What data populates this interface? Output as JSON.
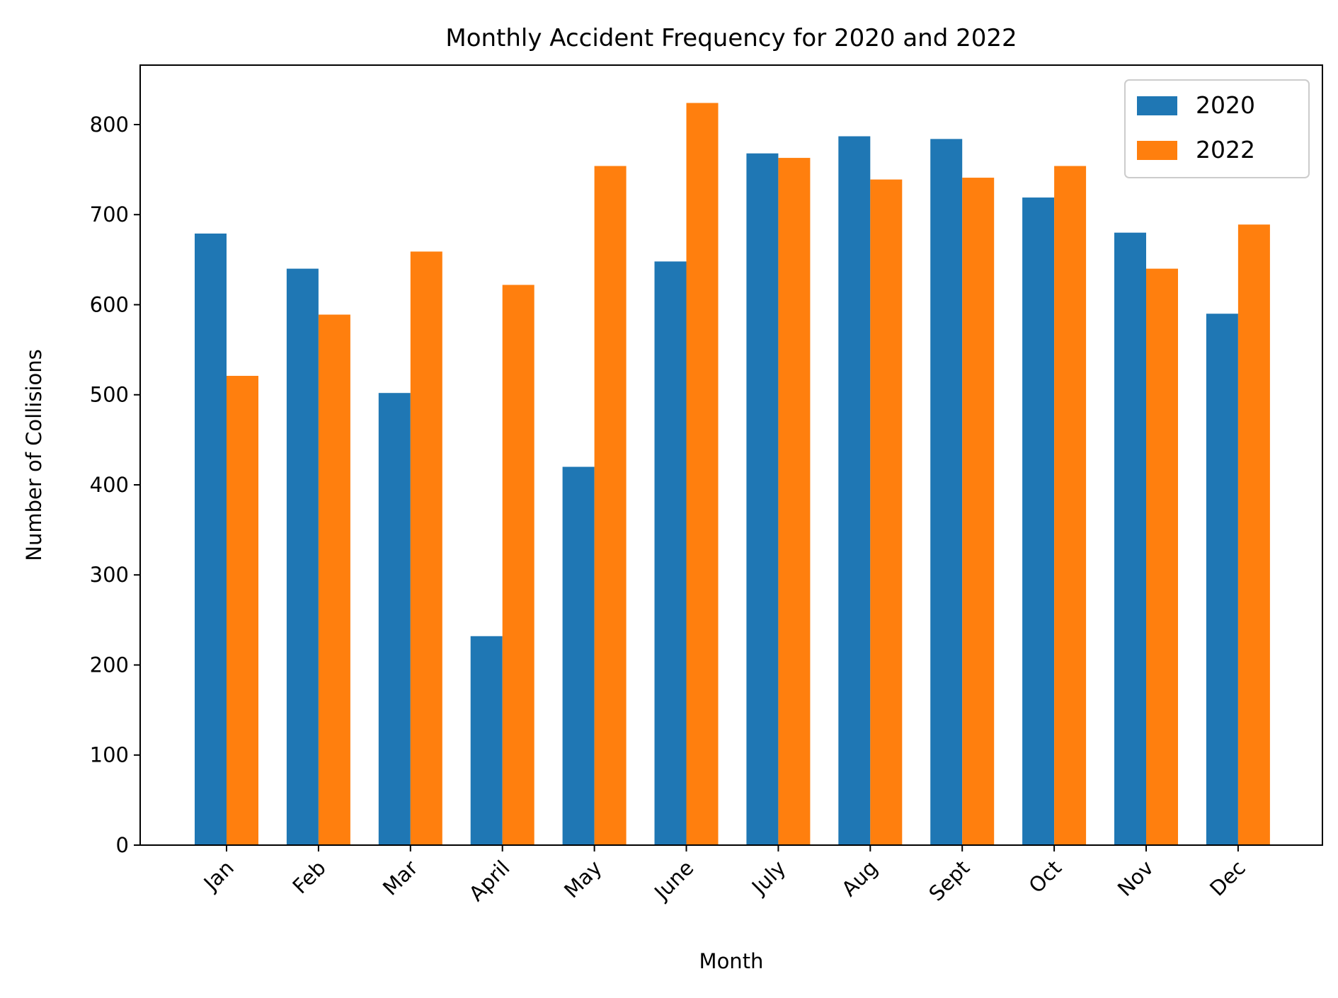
{
  "chart_data": {
    "type": "bar",
    "title": "Monthly Accident Frequency for 2020 and 2022",
    "xlabel": "Month",
    "ylabel": "Number of Collisions",
    "categories": [
      "Jan",
      "Feb",
      "Mar",
      "April",
      "May",
      "June",
      "July",
      "Aug",
      "Sept",
      "Oct",
      "Nov",
      "Dec"
    ],
    "series": [
      {
        "name": "2020",
        "color": "#1f77b4",
        "values": [
          679,
          640,
          502,
          232,
          420,
          648,
          768,
          787,
          784,
          719,
          680,
          590
        ]
      },
      {
        "name": "2022",
        "color": "#ff7f0e",
        "values": [
          521,
          589,
          659,
          622,
          754,
          824,
          763,
          739,
          741,
          754,
          640,
          689
        ]
      }
    ],
    "ylim": [
      0,
      866
    ],
    "yticks": [
      "0",
      "100",
      "200",
      "300",
      "400",
      "500",
      "600",
      "700",
      "800"
    ],
    "grid": false,
    "legend_position": "top-right"
  }
}
